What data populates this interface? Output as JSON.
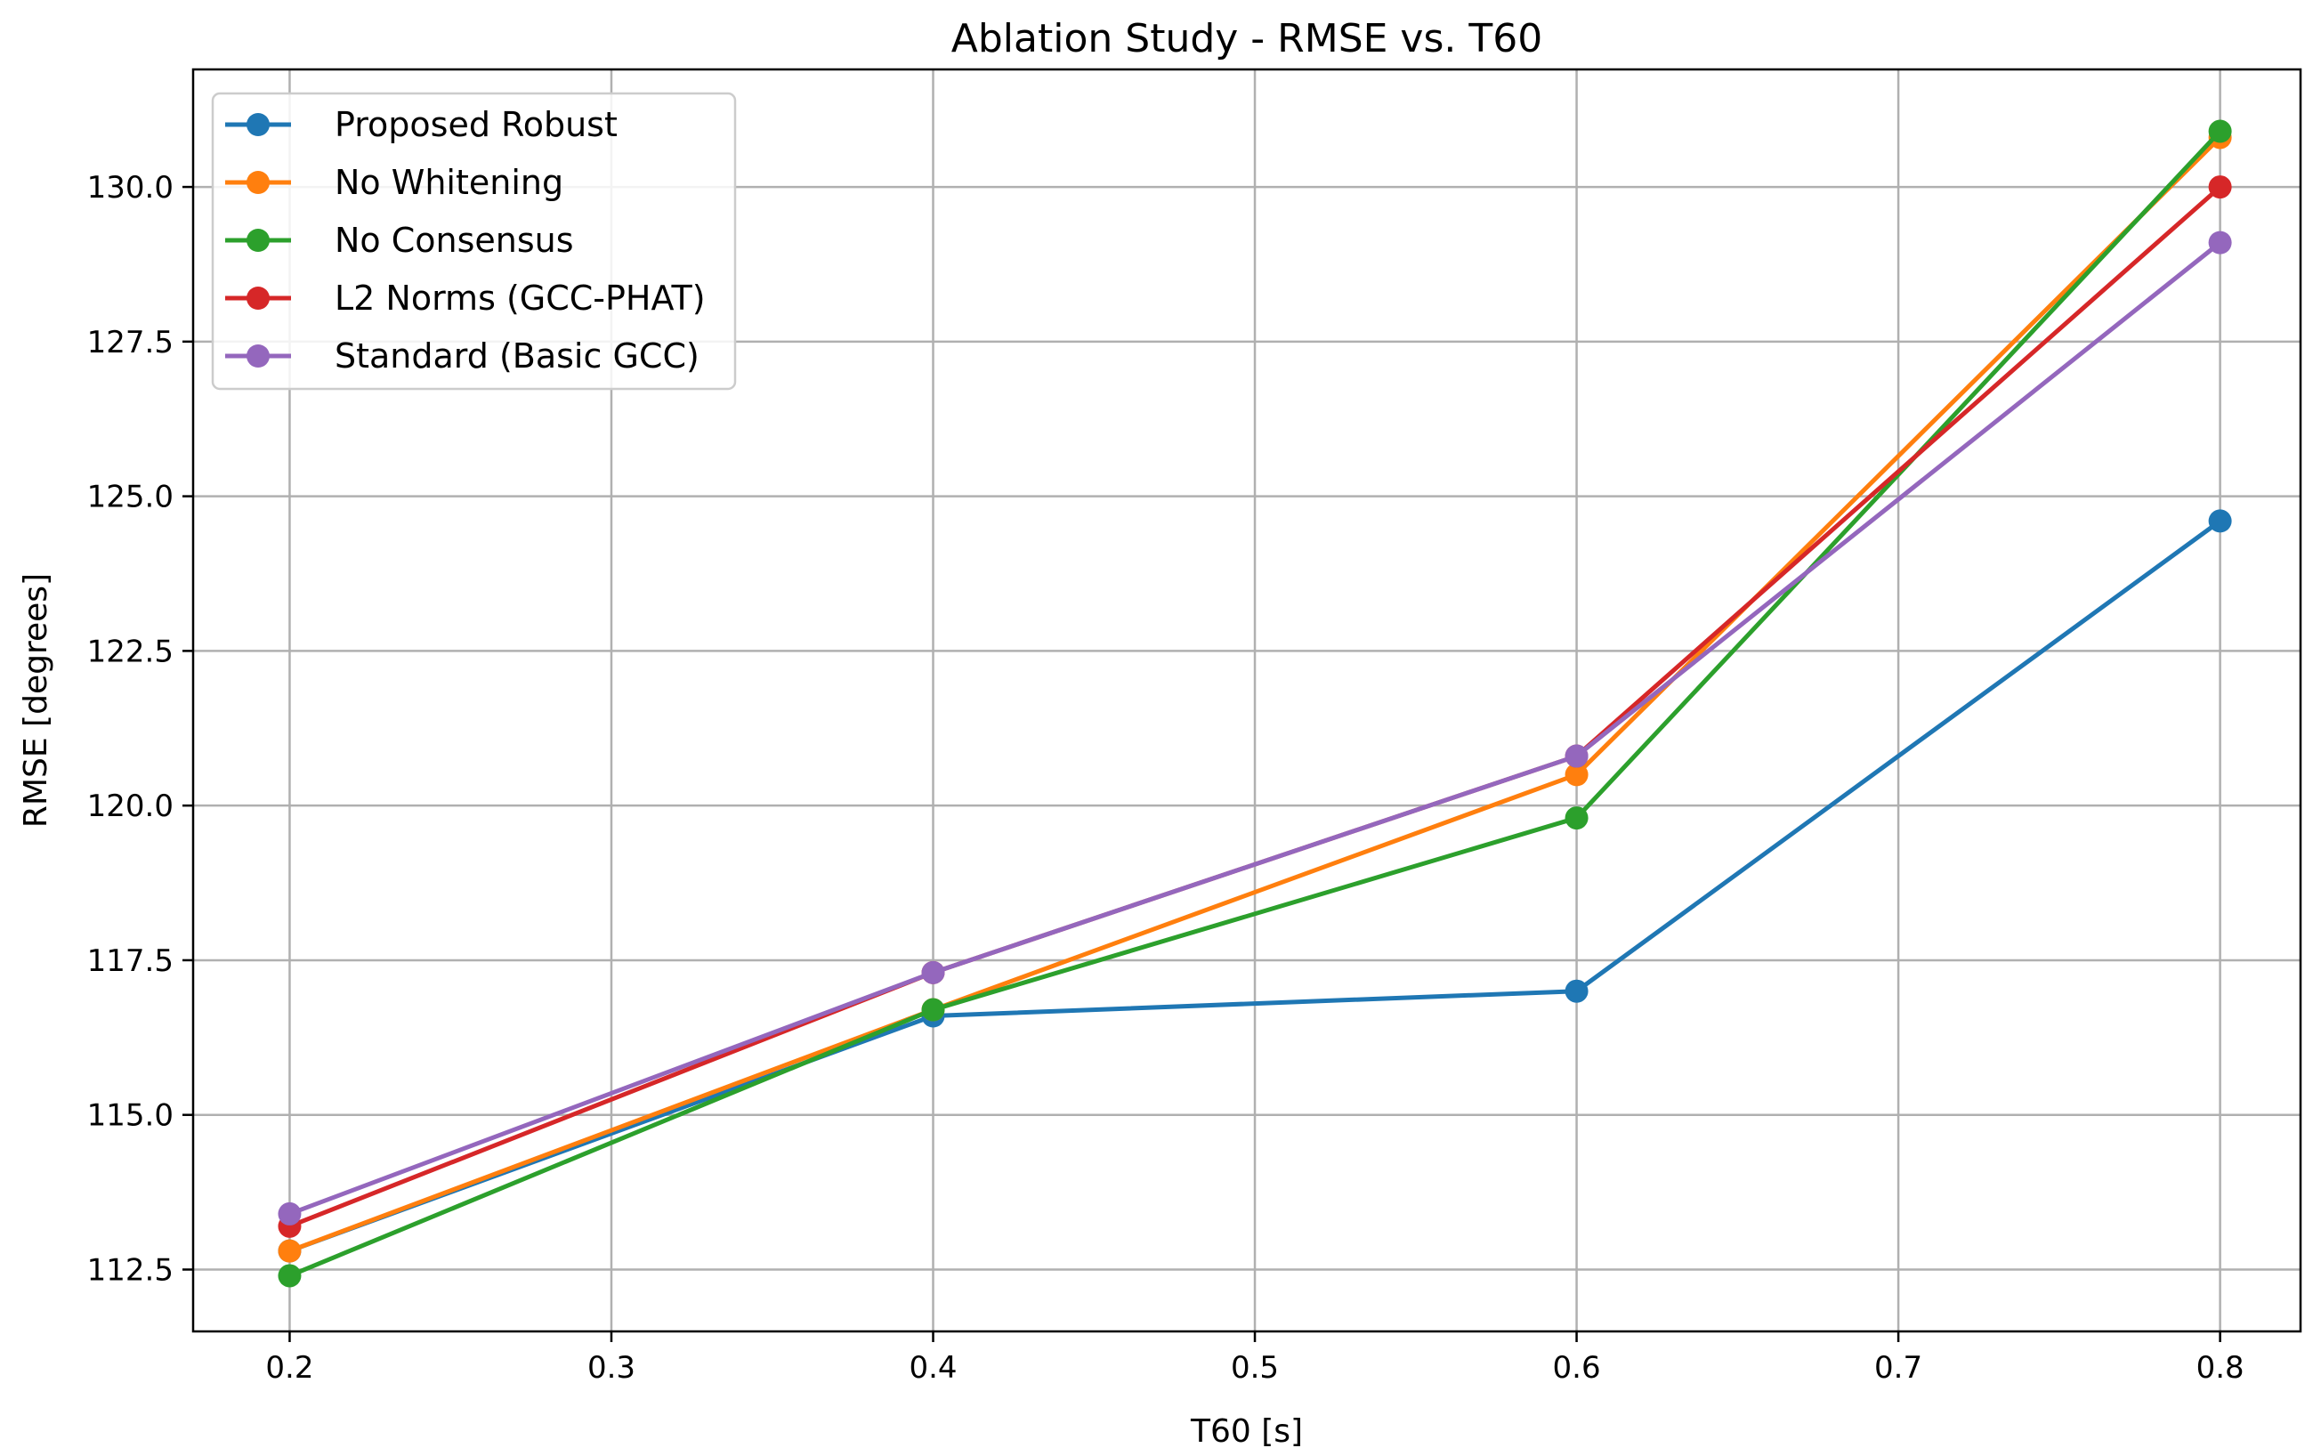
{
  "chart_data": {
    "type": "line",
    "title": "Ablation Study - RMSE vs. T60",
    "xlabel": "T60 [s]",
    "ylabel": "RMSE [degrees]",
    "xlim": [
      0.17,
      0.825
    ],
    "ylim": [
      111.5,
      131.9
    ],
    "grid": true,
    "legend_position": "top-left",
    "x_ticks": [
      0.2,
      0.3,
      0.4,
      0.5,
      0.6,
      0.7,
      0.8
    ],
    "x_tick_labels": [
      "0.2",
      "0.3",
      "0.4",
      "0.5",
      "0.6",
      "0.7",
      "0.8"
    ],
    "y_ticks": [
      112.5,
      115.0,
      117.5,
      120.0,
      122.5,
      125.0,
      127.5,
      130.0
    ],
    "y_tick_labels": [
      "112.5",
      "115.0",
      "117.5",
      "120.0",
      "122.5",
      "125.0",
      "127.5",
      "130.0"
    ],
    "x": [
      0.2,
      0.4,
      0.6,
      0.8
    ],
    "series": [
      {
        "name": "Proposed Robust",
        "color": "#1f77b4",
        "values": [
          112.8,
          116.6,
          117.0,
          124.6
        ]
      },
      {
        "name": "No Whitening",
        "color": "#ff7f0e",
        "values": [
          112.8,
          116.7,
          120.5,
          130.8
        ]
      },
      {
        "name": "No Consensus",
        "color": "#2ca02c",
        "values": [
          112.4,
          116.7,
          119.8,
          130.9
        ]
      },
      {
        "name": "L2 Norms (GCC-PHAT)",
        "color": "#d62728",
        "values": [
          113.2,
          117.3,
          120.8,
          130.0
        ]
      },
      {
        "name": "Standard (Basic GCC)",
        "color": "#9467bd",
        "values": [
          113.4,
          117.3,
          120.8,
          129.1
        ]
      }
    ]
  }
}
